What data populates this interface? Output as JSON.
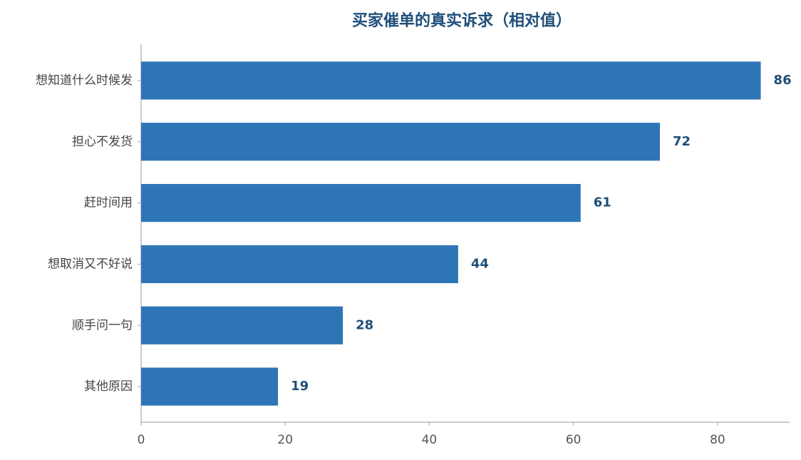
{
  "chart_data": {
    "type": "barh",
    "title": "买家催单的真实诉求（相对值）",
    "categories": [
      "想知道什么时候发",
      "担心不发货",
      "赶时间用",
      "想取消又不好说",
      "顺手问一句",
      "其他原因"
    ],
    "values": [
      86,
      72,
      61,
      44,
      28,
      19
    ],
    "color": "#2e75b6",
    "xlim": [
      0,
      90
    ],
    "xticks": [
      0,
      20,
      40,
      60,
      80
    ],
    "grid": false
  }
}
